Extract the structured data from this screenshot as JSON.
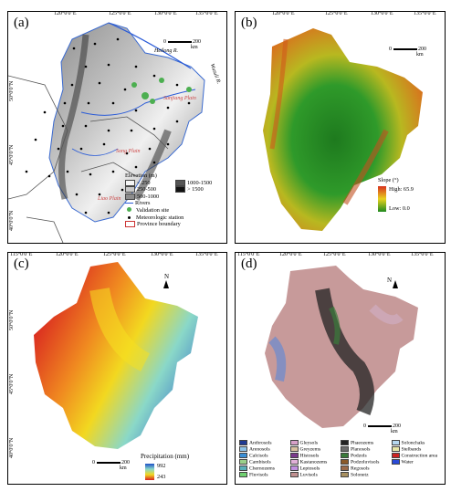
{
  "panel_a": {
    "label": "(a)",
    "top_ticks": [
      "120°0'0\"E",
      "125°0'0\"E",
      "130°0'0\"E",
      "135°0'0\"E"
    ],
    "left_ticks": [
      "50°0'0\"N",
      "45°0'0\"N",
      "40°0'0\"N"
    ],
    "scale": {
      "zero": "0",
      "value": "200",
      "unit": "km"
    },
    "rivers": [
      "Heilong R.",
      "Wusuli R."
    ],
    "places": [
      "Sanjiang Plain",
      "Song Plain",
      "Liao Plain"
    ],
    "legend_title": "Elevation (m)",
    "legend_items": [
      {
        "label": "< 250",
        "color": "#f5f5f5"
      },
      {
        "label": "1000-1500",
        "color": "#555555"
      },
      {
        "label": "250-500",
        "color": "#c8c8c8"
      },
      {
        "label": "> 1500",
        "color": "#111111"
      },
      {
        "label": "500-1000",
        "color": "#8c8c8c"
      }
    ],
    "legend_symbols": [
      "Rivers",
      "Validation site",
      "Meteorologic station",
      "Province boundary"
    ]
  },
  "panel_b": {
    "label": "(b)",
    "top_ticks": [
      "120°0'0\"E",
      "125°0'0\"E",
      "130°0'0\"E",
      "135°0'0\"E"
    ],
    "scale": {
      "zero": "0",
      "value": "200",
      "unit": "km"
    },
    "legend_title": "Slope (°)",
    "high": "High: 65.9",
    "low": "Low: 0.0"
  },
  "panel_c": {
    "label": "(c)",
    "top_ticks": [
      "115°0'0\"E",
      "120°0'0\"E",
      "125°0'0\"E",
      "130°0'0\"E",
      "135°0'0\"E"
    ],
    "left_ticks": [
      "50°0'0\"N",
      "45°0'0\"N",
      "40°0'0\"N"
    ],
    "north": "N",
    "scale": {
      "zero": "0",
      "value": "200",
      "unit": "km"
    },
    "legend_title": "Precipitation (mm)",
    "high": "992",
    "low": "243"
  },
  "panel_d": {
    "label": "(d)",
    "top_ticks": [
      "115°0'0\"E",
      "120°0'0\"E",
      "125°0'0\"E",
      "130°0'0\"E",
      "135°0'0\"E"
    ],
    "north": "N",
    "scale": {
      "zero": "0",
      "value": "200",
      "unit": "km"
    },
    "soil_classes": [
      {
        "label": "Anthrosols",
        "color": "#1f3a93"
      },
      {
        "label": "Gleysols",
        "color": "#d6a0c8"
      },
      {
        "label": "Phaeozems",
        "color": "#222222"
      },
      {
        "label": "Solonchaks",
        "color": "#b6d7f0"
      },
      {
        "label": "Arenosols",
        "color": "#8fc3e8"
      },
      {
        "label": "Greyzems",
        "color": "#d8c0a0"
      },
      {
        "label": "Planosols",
        "color": "#6b6b6b"
      },
      {
        "label": "Stelbands",
        "color": "#e8e6a8"
      },
      {
        "label": "Calcisols",
        "color": "#3b8fd6"
      },
      {
        "label": "Histosols",
        "color": "#7a3a8c"
      },
      {
        "label": "Podzols",
        "color": "#3a7a3a"
      },
      {
        "label": "Construction area",
        "color": "#cc2222"
      },
      {
        "label": "Cambisols",
        "color": "#9ad08a"
      },
      {
        "label": "Kastanozems",
        "color": "#e0b0d8"
      },
      {
        "label": "Podzoluvisols",
        "color": "#8a5a2a"
      },
      {
        "label": "Water",
        "color": "#2a4ad8"
      },
      {
        "label": "Chernozems",
        "color": "#5ab0b8"
      },
      {
        "label": "Leptosols",
        "color": "#c090e0"
      },
      {
        "label": "Regosols",
        "color": "#9a6a4a"
      },
      {
        "label": "",
        "color": ""
      },
      {
        "label": "Fluvisols",
        "color": "#70d070"
      },
      {
        "label": "Luvisols",
        "color": "#c09090"
      },
      {
        "label": "Solonetz",
        "color": "#a89060"
      }
    ]
  }
}
